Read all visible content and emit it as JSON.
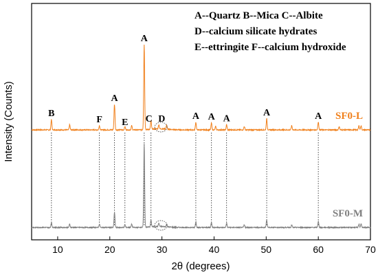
{
  "chart_data": {
    "type": "line",
    "title": "",
    "xlabel": "2θ (degrees)",
    "ylabel": "Intensity (Counts)",
    "xlim": [
      5,
      70
    ],
    "xticks": [
      10,
      20,
      30,
      40,
      50,
      60,
      70
    ],
    "y_ticks_shown": false,
    "legend_position": "top-right",
    "legend_lines": [
      "A--Quartz  B--Mica  C--Albite",
      "D--calcium silicate hydrates",
      "E--ettringite   F--calcium hydroxide"
    ],
    "series": [
      {
        "name": "SF0-L",
        "color": "#F07F1A",
        "peaks": [
          {
            "x": 8.8,
            "h": 0.12
          },
          {
            "x": 12.3,
            "h": 0.06
          },
          {
            "x": 18.0,
            "h": 0.05
          },
          {
            "x": 20.9,
            "h": 0.3
          },
          {
            "x": 22.9,
            "h": 0.04
          },
          {
            "x": 24.2,
            "h": 0.05
          },
          {
            "x": 26.6,
            "h": 1.0
          },
          {
            "x": 27.9,
            "h": 0.1
          },
          {
            "x": 29.4,
            "h": 0.05
          },
          {
            "x": 30.9,
            "h": 0.05
          },
          {
            "x": 36.5,
            "h": 0.09
          },
          {
            "x": 39.5,
            "h": 0.08
          },
          {
            "x": 40.3,
            "h": 0.04
          },
          {
            "x": 42.4,
            "h": 0.06
          },
          {
            "x": 45.8,
            "h": 0.04
          },
          {
            "x": 50.1,
            "h": 0.13
          },
          {
            "x": 54.9,
            "h": 0.05
          },
          {
            "x": 60.0,
            "h": 0.09
          },
          {
            "x": 64.0,
            "h": 0.04
          },
          {
            "x": 67.8,
            "h": 0.05
          },
          {
            "x": 68.2,
            "h": 0.05
          }
        ]
      },
      {
        "name": "SF0-M",
        "color": "#7F7F7F",
        "peaks": [
          {
            "x": 8.8,
            "h": 0.06
          },
          {
            "x": 12.3,
            "h": 0.04
          },
          {
            "x": 18.0,
            "h": 0.04
          },
          {
            "x": 20.9,
            "h": 0.18
          },
          {
            "x": 22.9,
            "h": 0.03
          },
          {
            "x": 24.2,
            "h": 0.04
          },
          {
            "x": 26.6,
            "h": 1.0
          },
          {
            "x": 27.9,
            "h": 0.08
          },
          {
            "x": 29.4,
            "h": 0.04
          },
          {
            "x": 30.9,
            "h": 0.03
          },
          {
            "x": 36.5,
            "h": 0.07
          },
          {
            "x": 39.5,
            "h": 0.06
          },
          {
            "x": 42.4,
            "h": 0.05
          },
          {
            "x": 45.8,
            "h": 0.03
          },
          {
            "x": 50.1,
            "h": 0.09
          },
          {
            "x": 54.9,
            "h": 0.03
          },
          {
            "x": 60.0,
            "h": 0.07
          },
          {
            "x": 67.8,
            "h": 0.04
          },
          {
            "x": 68.2,
            "h": 0.04
          }
        ]
      }
    ],
    "peak_annotations": [
      {
        "label": "B",
        "x": 8.8
      },
      {
        "label": "F",
        "x": 18.0
      },
      {
        "label": "A",
        "x": 20.9
      },
      {
        "label": "E",
        "x": 22.9
      },
      {
        "label": "A",
        "x": 26.6
      },
      {
        "label": "C",
        "x": 27.9
      },
      {
        "label": "D",
        "x": 29.7
      },
      {
        "label": "A",
        "x": 36.5
      },
      {
        "label": "A",
        "x": 39.5
      },
      {
        "label": "A",
        "x": 42.4
      },
      {
        "label": "A",
        "x": 50.1
      },
      {
        "label": "A",
        "x": 60.0
      }
    ],
    "reference_lines_x": [
      8.8,
      18.0,
      20.9,
      22.9,
      26.6,
      27.9,
      36.5,
      39.5,
      42.4,
      50.1,
      60.0
    ],
    "highlight_regions_x": [
      29.8,
      29.8
    ]
  }
}
